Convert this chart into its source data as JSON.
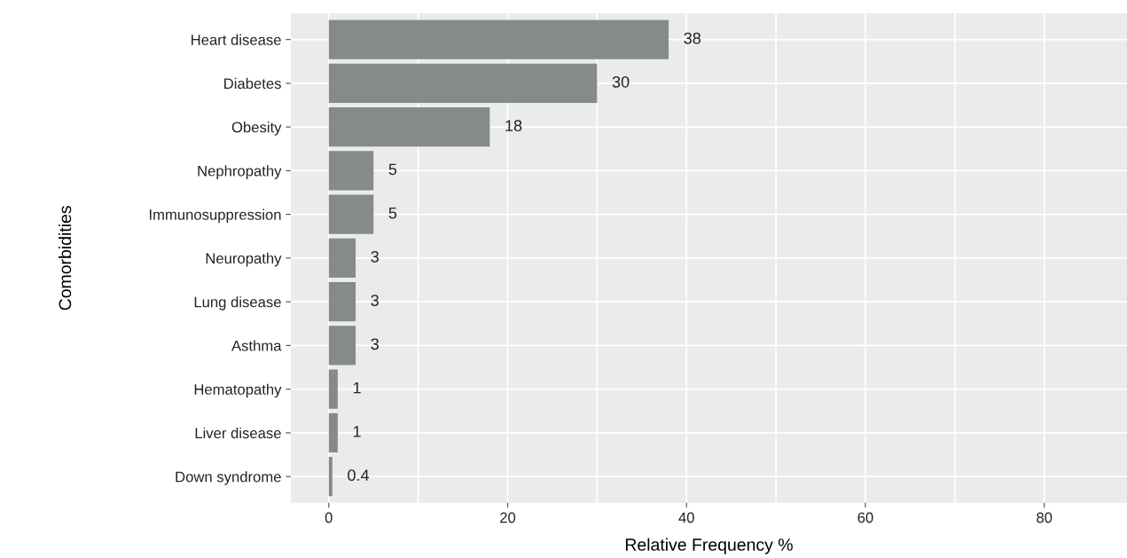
{
  "chart_data": {
    "type": "bar",
    "orientation": "horizontal",
    "categories": [
      "Heart disease",
      "Diabetes",
      "Obesity",
      "Nephropathy",
      "Immunosuppression",
      "Neuropathy",
      "Lung disease",
      "Asthma",
      "Hematopathy",
      "Liver disease",
      "Down syndrome"
    ],
    "values": [
      38,
      30,
      18,
      5,
      5,
      3,
      3,
      3,
      1,
      1,
      0.4
    ],
    "color": "#848b89",
    "xlabel": "Relative Frequency %",
    "ylabel": "Comorbidities",
    "xlim": [
      -4.25,
      89.25
    ],
    "xticks": [
      0,
      {
        "value": 10,
        "label": null
      },
      20,
      {
        "value": 30,
        "label": null
      },
      40,
      {
        "value": 50,
        "label": null
      },
      60,
      {
        "value": 70,
        "label": null
      },
      80
    ],
    "grid": true,
    "data_labels": true
  }
}
